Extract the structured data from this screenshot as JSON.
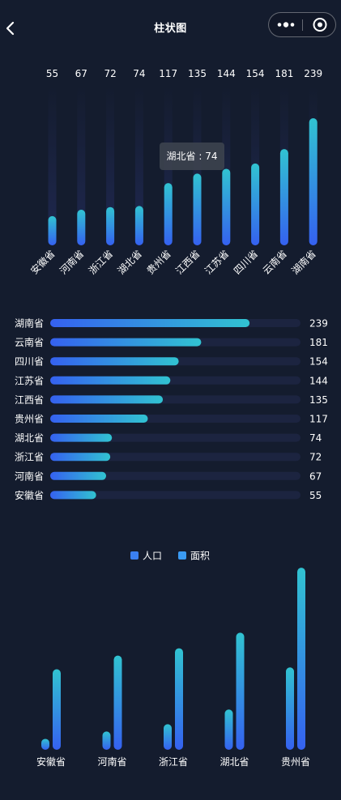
{
  "nav": {
    "title": "柱状图",
    "back_icon": "chevron-left-icon",
    "more_icon": "more-dots-icon",
    "close_icon": "target-icon"
  },
  "colors": {
    "background": "#141c2e",
    "bar_bottom": "#3561f0",
    "bar_top": "#31c3d1",
    "track": "#1c2440"
  },
  "chart_data": [
    {
      "type": "bar",
      "orientation": "vertical",
      "categories": [
        "安徽省",
        "河南省",
        "浙江省",
        "湖北省",
        "贵州省",
        "江西省",
        "江苏省",
        "四川省",
        "云南省",
        "湖南省"
      ],
      "values": [
        55,
        67,
        72,
        74,
        117,
        135,
        144,
        154,
        181,
        239
      ],
      "ylim": [
        0,
        300
      ],
      "data_labels": true,
      "grid": false,
      "tooltip": {
        "text": "湖北省 : 74",
        "category": "湖北省",
        "value": 74
      }
    },
    {
      "type": "bar",
      "orientation": "horizontal",
      "categories": [
        "湖南省",
        "云南省",
        "四川省",
        "江苏省",
        "江西省",
        "贵州省",
        "湖北省",
        "浙江省",
        "河南省",
        "安徽省"
      ],
      "values": [
        239,
        181,
        154,
        144,
        135,
        117,
        74,
        72,
        67,
        55
      ],
      "xlim": [
        0,
        300
      ],
      "data_labels": true,
      "grid": false
    },
    {
      "type": "bar",
      "orientation": "vertical",
      "categories": [
        "安徽省",
        "河南省",
        "浙江省",
        "湖北省",
        "贵州省"
      ],
      "series": [
        {
          "name": "人口",
          "values": [
            12,
            20,
            28,
            44,
            90
          ]
        },
        {
          "name": "面积",
          "values": [
            88,
            103,
            111,
            128,
            199
          ]
        }
      ],
      "ylim": [
        0,
        200
      ],
      "legend": "top-center",
      "grid": false
    }
  ]
}
